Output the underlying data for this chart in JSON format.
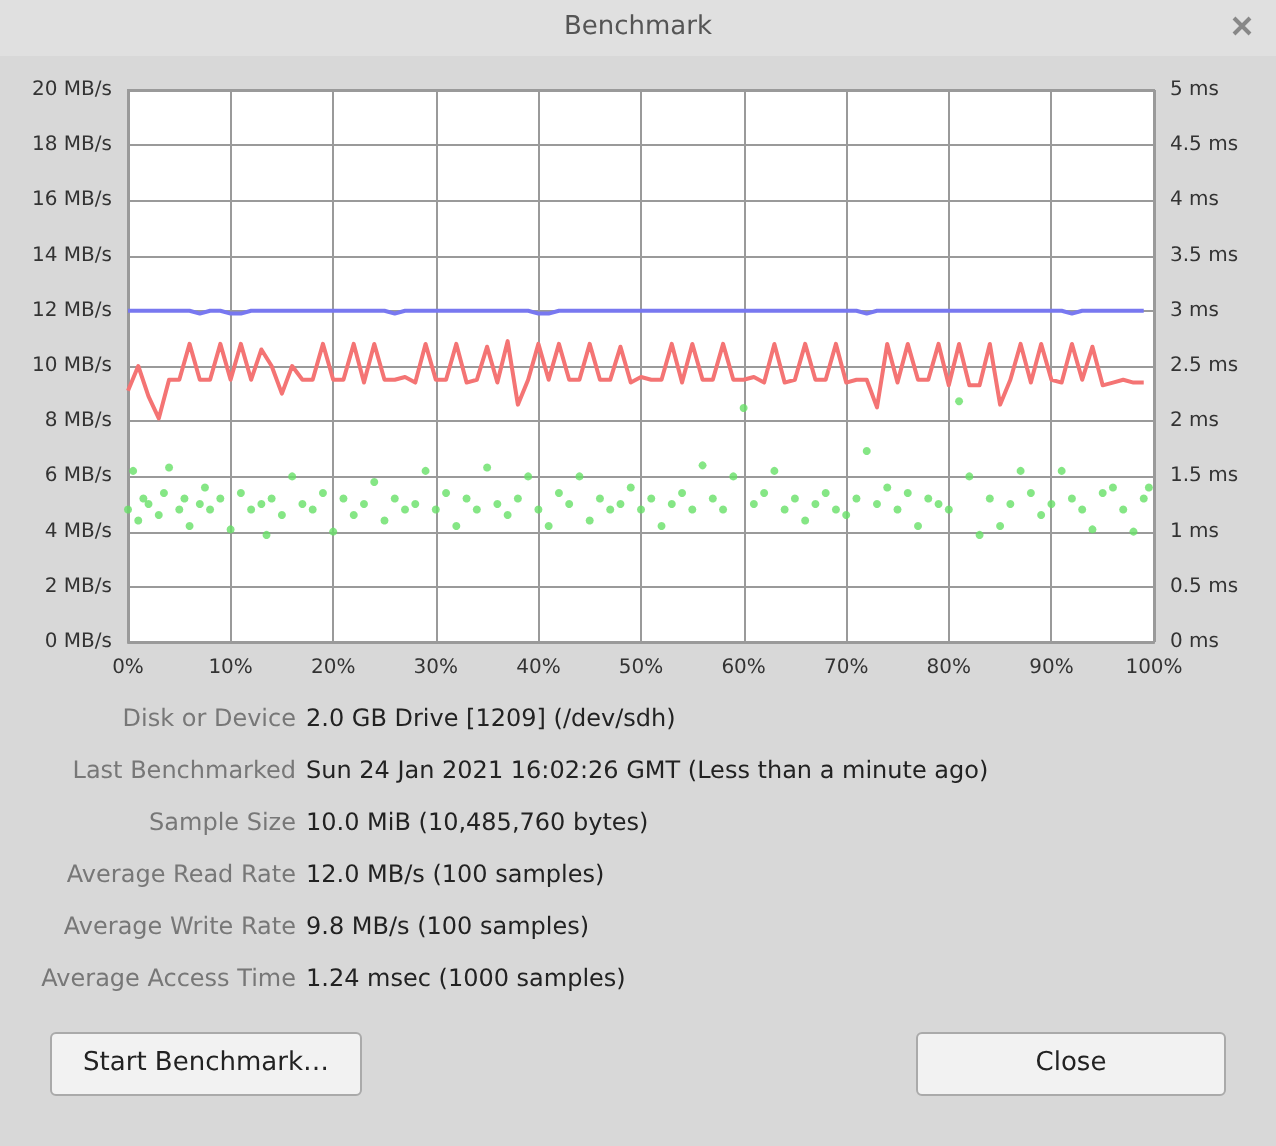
{
  "chart_data": {
    "type": "line",
    "title": "Benchmark",
    "x": [
      0,
      1,
      2,
      3,
      4,
      5,
      6,
      7,
      8,
      9,
      10,
      11,
      12,
      13,
      14,
      15,
      16,
      17,
      18,
      19,
      20,
      21,
      22,
      23,
      24,
      25,
      26,
      27,
      28,
      29,
      30,
      31,
      32,
      33,
      34,
      35,
      36,
      37,
      38,
      39,
      40,
      41,
      42,
      43,
      44,
      45,
      46,
      47,
      48,
      49,
      50,
      51,
      52,
      53,
      54,
      55,
      56,
      57,
      58,
      59,
      60,
      61,
      62,
      63,
      64,
      65,
      66,
      67,
      68,
      69,
      70,
      71,
      72,
      73,
      74,
      75,
      76,
      77,
      78,
      79,
      80,
      81,
      82,
      83,
      84,
      85,
      86,
      87,
      88,
      89,
      90,
      91,
      92,
      93,
      94,
      95,
      96,
      97,
      98,
      99
    ],
    "xlim": [
      0,
      100
    ],
    "xticks": [
      {
        "value": 0,
        "label": "0%"
      },
      {
        "value": 10,
        "label": "10%"
      },
      {
        "value": 20,
        "label": "20%"
      },
      {
        "value": 30,
        "label": "30%"
      },
      {
        "value": 40,
        "label": "40%"
      },
      {
        "value": 50,
        "label": "50%"
      },
      {
        "value": 60,
        "label": "60%"
      },
      {
        "value": 70,
        "label": "70%"
      },
      {
        "value": 80,
        "label": "80%"
      },
      {
        "value": 90,
        "label": "90%"
      },
      {
        "value": 100,
        "label": "100%"
      }
    ],
    "ylim": [
      0,
      20
    ],
    "yticks": [
      {
        "value": 0,
        "label": "0 MB/s"
      },
      {
        "value": 2,
        "label": "2 MB/s"
      },
      {
        "value": 4,
        "label": "4 MB/s"
      },
      {
        "value": 6,
        "label": "6 MB/s"
      },
      {
        "value": 8,
        "label": "8 MB/s"
      },
      {
        "value": 10,
        "label": "10 MB/s"
      },
      {
        "value": 12,
        "label": "12 MB/s"
      },
      {
        "value": 14,
        "label": "14 MB/s"
      },
      {
        "value": 16,
        "label": "16 MB/s"
      },
      {
        "value": 18,
        "label": "18 MB/s"
      },
      {
        "value": 20,
        "label": "20 MB/s"
      }
    ],
    "y2lim": [
      0,
      5
    ],
    "y2ticks": [
      {
        "value": 0,
        "label": "0 ms"
      },
      {
        "value": 0.5,
        "label": "0.5 ms"
      },
      {
        "value": 1,
        "label": "1 ms"
      },
      {
        "value": 1.5,
        "label": "1.5 ms"
      },
      {
        "value": 2,
        "label": "2 ms"
      },
      {
        "value": 2.5,
        "label": "2.5 ms"
      },
      {
        "value": 3,
        "label": "3 ms"
      },
      {
        "value": 3.5,
        "label": "3.5 ms"
      },
      {
        "value": 4,
        "label": "4 ms"
      },
      {
        "value": 4.5,
        "label": "4.5 ms"
      },
      {
        "value": 5,
        "label": "5 ms"
      }
    ],
    "grid": true,
    "marker": "none",
    "line_style": "solid",
    "series": [
      {
        "color": "#7878f0",
        "values": [
          12.0,
          12.0,
          12.0,
          12.0,
          12.0,
          12.0,
          12.0,
          11.9,
          12.0,
          12.0,
          11.9,
          11.9,
          12.0,
          12.0,
          12.0,
          12.0,
          12.0,
          12.0,
          12.0,
          12.0,
          12.0,
          12.0,
          12.0,
          12.0,
          12.0,
          12.0,
          11.9,
          12.0,
          12.0,
          12.0,
          12.0,
          12.0,
          12.0,
          12.0,
          12.0,
          12.0,
          12.0,
          12.0,
          12.0,
          12.0,
          11.9,
          11.9,
          12.0,
          12.0,
          12.0,
          12.0,
          12.0,
          12.0,
          12.0,
          12.0,
          12.0,
          12.0,
          12.0,
          12.0,
          12.0,
          12.0,
          12.0,
          12.0,
          12.0,
          12.0,
          12.0,
          12.0,
          12.0,
          12.0,
          12.0,
          12.0,
          12.0,
          12.0,
          12.0,
          12.0,
          12.0,
          12.0,
          11.9,
          12.0,
          12.0,
          12.0,
          12.0,
          12.0,
          12.0,
          12.0,
          12.0,
          12.0,
          12.0,
          12.0,
          12.0,
          12.0,
          12.0,
          12.0,
          12.0,
          12.0,
          12.0,
          12.0,
          11.9,
          12.0,
          12.0,
          12.0,
          12.0,
          12.0,
          12.0,
          12.0
        ]
      },
      {
        "color": "#f47474",
        "values": [
          9.1,
          10.0,
          8.9,
          8.1,
          9.5,
          9.5,
          10.8,
          9.5,
          9.5,
          10.8,
          9.5,
          10.8,
          9.5,
          10.6,
          10.0,
          9.0,
          10.0,
          9.5,
          9.5,
          10.8,
          9.5,
          9.5,
          10.8,
          9.4,
          10.8,
          9.5,
          9.5,
          9.6,
          9.4,
          10.8,
          9.5,
          9.5,
          10.8,
          9.4,
          9.5,
          10.7,
          9.4,
          10.9,
          8.6,
          9.5,
          10.8,
          9.5,
          10.8,
          9.5,
          9.5,
          10.8,
          9.5,
          9.5,
          10.7,
          9.4,
          9.6,
          9.5,
          9.5,
          10.8,
          9.4,
          10.8,
          9.5,
          9.5,
          10.8,
          9.5,
          9.5,
          9.6,
          9.4,
          10.8,
          9.4,
          9.5,
          10.8,
          9.5,
          9.5,
          10.8,
          9.4,
          9.5,
          9.5,
          8.5,
          10.8,
          9.4,
          10.8,
          9.5,
          9.5,
          10.8,
          9.3,
          10.8,
          9.3,
          9.3,
          10.8,
          8.6,
          9.5,
          10.8,
          9.4,
          10.8,
          9.5,
          9.4,
          10.8,
          9.5,
          10.7,
          9.3,
          9.4,
          9.5,
          9.4,
          9.4
        ]
      },
      {
        "type": "scatter",
        "axis": "y2",
        "color": "#66e066",
        "marker": "circle",
        "x": [
          0,
          0.5,
          1,
          1.5,
          2,
          3,
          3.5,
          4,
          5,
          5.5,
          6,
          7,
          7.5,
          8,
          9,
          10,
          11,
          12,
          13,
          13.5,
          14,
          15,
          16,
          17,
          18,
          19,
          20,
          21,
          22,
          23,
          24,
          25,
          26,
          27,
          28,
          29,
          30,
          31,
          32,
          33,
          34,
          35,
          36,
          37,
          38,
          39,
          40,
          41,
          42,
          43,
          44,
          45,
          46,
          47,
          48,
          49,
          50,
          51,
          52,
          53,
          54,
          55,
          56,
          57,
          58,
          59,
          60,
          61,
          62,
          63,
          64,
          65,
          66,
          67,
          68,
          69,
          70,
          71,
          72,
          73,
          74,
          75,
          76,
          77,
          78,
          79,
          80,
          81,
          82,
          83,
          84,
          85,
          86,
          87,
          88,
          89,
          90,
          91,
          92,
          93,
          94,
          95,
          96,
          97,
          98,
          99,
          99.5
        ],
        "values": [
          1.2,
          1.55,
          1.1,
          1.3,
          1.25,
          1.15,
          1.35,
          1.58,
          1.2,
          1.3,
          1.05,
          1.25,
          1.4,
          1.2,
          1.3,
          1.02,
          1.35,
          1.2,
          1.25,
          0.97,
          1.3,
          1.15,
          1.5,
          1.25,
          1.2,
          1.35,
          1.0,
          1.3,
          1.15,
          1.25,
          1.45,
          1.1,
          1.3,
          1.2,
          1.25,
          1.55,
          1.2,
          1.35,
          1.05,
          1.3,
          1.2,
          1.58,
          1.25,
          1.15,
          1.3,
          1.5,
          1.2,
          1.05,
          1.35,
          1.25,
          1.5,
          1.1,
          1.3,
          1.2,
          1.25,
          1.4,
          1.2,
          1.3,
          1.05,
          1.25,
          1.35,
          1.2,
          1.6,
          1.3,
          1.2,
          1.5,
          2.12,
          1.25,
          1.35,
          1.55,
          1.2,
          1.3,
          1.1,
          1.25,
          1.35,
          1.2,
          1.15,
          1.3,
          1.73,
          1.25,
          1.4,
          1.2,
          1.35,
          1.05,
          1.3,
          1.25,
          1.2,
          2.18,
          1.5,
          0.97,
          1.3,
          1.05,
          1.25,
          1.55,
          1.35,
          1.15,
          1.25,
          1.55,
          1.3,
          1.2,
          1.02,
          1.35,
          1.4,
          1.2,
          1.0,
          1.3,
          1.4
        ]
      }
    ],
    "annotations": [
      "Disk or Device",
      "2.0 GB Drive [1209] (/dev/sdh)",
      "Last Benchmarked",
      "Sun 24 Jan 2021 16:02:26 GMT (Less than a minute ago)",
      "Sample Size",
      "10.0 MiB (10,485,760 bytes)",
      "Average Read Rate",
      "12.0 MB/s (100 samples)",
      "Average Write Rate",
      "9.8 MB/s (100 samples)",
      "Average Access Time",
      "1.24 msec (1000 samples)",
      "Start Benchmark…",
      "Close"
    ]
  }
}
